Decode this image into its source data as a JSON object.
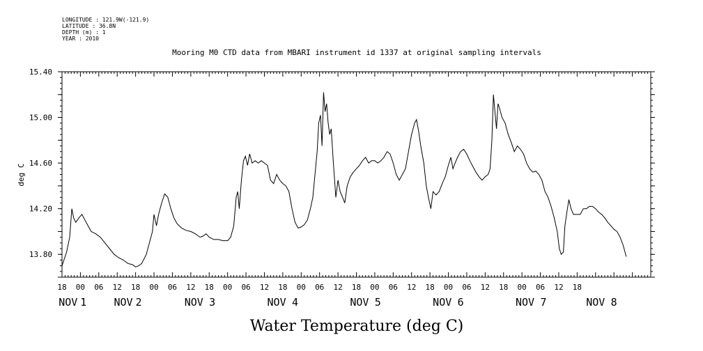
{
  "header": {
    "meta_lines": [
      "LONGITUDE : 121.9W(-121.9)",
      "LATITUDE : 36.8N",
      "DEPTH (m) : 1",
      "YEAR : 2010"
    ]
  },
  "chart_data": {
    "type": "line",
    "title": "Mooring M0 CTD data from MBARI instrument id 1337 at original sampling intervals",
    "xlabel": "Water Temperature (deg C)",
    "ylabel": "deg C",
    "ylim": [
      13.6,
      15.4
    ],
    "yticks": [
      13.8,
      14.2,
      14.6,
      15.0,
      15.4
    ],
    "ytick_labels": [
      "13.80",
      "14.20",
      "14.60",
      "15.00",
      "15.40"
    ],
    "xlim_hours": [
      -6,
      186
    ],
    "xtick_labels": [
      "18",
      "00",
      "06",
      "12",
      "18",
      "00",
      "06",
      "12",
      "18",
      "00",
      "06",
      "12",
      "18",
      "00",
      "06",
      "12",
      "18",
      "00",
      "06",
      "12",
      "18",
      "00",
      "06",
      "12",
      "18",
      "00",
      "06",
      "12",
      "18"
    ],
    "date_labels": [
      {
        "text": "NOV",
        "hour": -4
      },
      {
        "text": "1",
        "hour": 1
      },
      {
        "text": "NOV",
        "hour": 14
      },
      {
        "text": "2",
        "hour": 19
      },
      {
        "text": "NOV",
        "hour": 37
      },
      {
        "text": "3",
        "hour": 43
      },
      {
        "text": "NOV",
        "hour": 64
      },
      {
        "text": "4",
        "hour": 70
      },
      {
        "text": "NOV",
        "hour": 91
      },
      {
        "text": "5",
        "hour": 97
      },
      {
        "text": "NOV",
        "hour": 118
      },
      {
        "text": "6",
        "hour": 124
      },
      {
        "text": "NOV",
        "hour": 145
      },
      {
        "text": "7",
        "hour": 151
      },
      {
        "text": "NOV",
        "hour": 168
      },
      {
        "text": "8",
        "hour": 174
      }
    ],
    "series": [
      {
        "points": [
          [
            -6,
            13.7
          ],
          [
            -4.5,
            13.82
          ],
          [
            -3.5,
            13.95
          ],
          [
            -2.8,
            14.2
          ],
          [
            -2.2,
            14.12
          ],
          [
            -1.5,
            14.08
          ],
          [
            -0.5,
            14.12
          ],
          [
            0.5,
            14.15
          ],
          [
            1.5,
            14.1
          ],
          [
            2.5,
            14.05
          ],
          [
            3.5,
            14.0
          ],
          [
            5,
            13.98
          ],
          [
            6.5,
            13.95
          ],
          [
            8,
            13.9
          ],
          [
            9.5,
            13.85
          ],
          [
            11,
            13.8
          ],
          [
            12.5,
            13.77
          ],
          [
            14,
            13.75
          ],
          [
            15.5,
            13.72
          ],
          [
            17,
            13.71
          ],
          [
            18,
            13.69
          ],
          [
            19,
            13.7
          ],
          [
            20,
            13.72
          ],
          [
            21.5,
            13.8
          ],
          [
            22.5,
            13.9
          ],
          [
            23.5,
            14.0
          ],
          [
            24,
            14.15
          ],
          [
            24.8,
            14.05
          ],
          [
            25.5,
            14.15
          ],
          [
            26.5,
            14.25
          ],
          [
            27.5,
            14.33
          ],
          [
            28.5,
            14.3
          ],
          [
            29.5,
            14.2
          ],
          [
            30.5,
            14.12
          ],
          [
            31.5,
            14.07
          ],
          [
            33,
            14.03
          ],
          [
            34.5,
            14.01
          ],
          [
            36,
            14.0
          ],
          [
            37.5,
            13.98
          ],
          [
            39,
            13.95
          ],
          [
            40,
            13.96
          ],
          [
            41,
            13.98
          ],
          [
            42,
            13.95
          ],
          [
            43.5,
            13.93
          ],
          [
            45,
            13.93
          ],
          [
            46.5,
            13.92
          ],
          [
            48,
            13.92
          ],
          [
            49,
            13.95
          ],
          [
            50,
            14.05
          ],
          [
            50.8,
            14.3
          ],
          [
            51.3,
            14.35
          ],
          [
            51.8,
            14.2
          ],
          [
            52.5,
            14.45
          ],
          [
            53.2,
            14.62
          ],
          [
            53.8,
            14.66
          ],
          [
            54.5,
            14.58
          ],
          [
            55.2,
            14.68
          ],
          [
            56,
            14.6
          ],
          [
            57,
            14.62
          ],
          [
            58,
            14.6
          ],
          [
            59,
            14.62
          ],
          [
            60,
            14.6
          ],
          [
            61,
            14.58
          ],
          [
            62,
            14.45
          ],
          [
            63,
            14.42
          ],
          [
            64,
            14.5
          ],
          [
            65,
            14.45
          ],
          [
            66,
            14.42
          ],
          [
            67,
            14.4
          ],
          [
            68,
            14.35
          ],
          [
            69,
            14.2
          ],
          [
            70,
            14.08
          ],
          [
            71,
            14.03
          ],
          [
            72,
            14.04
          ],
          [
            73,
            14.06
          ],
          [
            74,
            14.1
          ],
          [
            75,
            14.2
          ],
          [
            75.8,
            14.3
          ],
          [
            76.5,
            14.5
          ],
          [
            77.2,
            14.7
          ],
          [
            77.7,
            14.95
          ],
          [
            78.3,
            15.02
          ],
          [
            78.8,
            14.75
          ],
          [
            79.3,
            15.22
          ],
          [
            79.8,
            15.05
          ],
          [
            80.3,
            15.12
          ],
          [
            80.8,
            14.95
          ],
          [
            81.3,
            14.85
          ],
          [
            81.8,
            14.9
          ],
          [
            82.5,
            14.6
          ],
          [
            83.3,
            14.3
          ],
          [
            84,
            14.45
          ],
          [
            84.7,
            14.35
          ],
          [
            85.5,
            14.3
          ],
          [
            86.2,
            14.25
          ],
          [
            87,
            14.4
          ],
          [
            88,
            14.48
          ],
          [
            89,
            14.52
          ],
          [
            90,
            14.55
          ],
          [
            91,
            14.58
          ],
          [
            92,
            14.62
          ],
          [
            93,
            14.65
          ],
          [
            94,
            14.6
          ],
          [
            95,
            14.62
          ],
          [
            96,
            14.62
          ],
          [
            97,
            14.6
          ],
          [
            98,
            14.62
          ],
          [
            99,
            14.65
          ],
          [
            100,
            14.7
          ],
          [
            101,
            14.68
          ],
          [
            102,
            14.6
          ],
          [
            103,
            14.5
          ],
          [
            104,
            14.45
          ],
          [
            105,
            14.5
          ],
          [
            106,
            14.55
          ],
          [
            107,
            14.7
          ],
          [
            108,
            14.85
          ],
          [
            109,
            14.95
          ],
          [
            109.6,
            14.98
          ],
          [
            110.3,
            14.88
          ],
          [
            111,
            14.75
          ],
          [
            112,
            14.6
          ],
          [
            112.8,
            14.4
          ],
          [
            113.5,
            14.3
          ],
          [
            114.3,
            14.2
          ],
          [
            115,
            14.35
          ],
          [
            116,
            14.32
          ],
          [
            117,
            14.35
          ],
          [
            118,
            14.42
          ],
          [
            119,
            14.48
          ],
          [
            120,
            14.58
          ],
          [
            120.8,
            14.65
          ],
          [
            121.5,
            14.55
          ],
          [
            122.2,
            14.6
          ],
          [
            123,
            14.65
          ],
          [
            124,
            14.7
          ],
          [
            125,
            14.72
          ],
          [
            126,
            14.68
          ],
          [
            127,
            14.62
          ],
          [
            128,
            14.57
          ],
          [
            129,
            14.52
          ],
          [
            130,
            14.48
          ],
          [
            131,
            14.45
          ],
          [
            132,
            14.48
          ],
          [
            133,
            14.5
          ],
          [
            133.6,
            14.55
          ],
          [
            134.2,
            14.8
          ],
          [
            134.7,
            15.2
          ],
          [
            135.2,
            15.05
          ],
          [
            135.7,
            14.9
          ],
          [
            136.2,
            15.12
          ],
          [
            136.7,
            15.08
          ],
          [
            137.5,
            15.0
          ],
          [
            138.5,
            14.95
          ],
          [
            139.5,
            14.85
          ],
          [
            140.5,
            14.78
          ],
          [
            141.5,
            14.7
          ],
          [
            142.5,
            14.75
          ],
          [
            143.5,
            14.72
          ],
          [
            144.5,
            14.68
          ],
          [
            145.5,
            14.6
          ],
          [
            146.5,
            14.55
          ],
          [
            147.5,
            14.52
          ],
          [
            148.5,
            14.53
          ],
          [
            149.5,
            14.5
          ],
          [
            150.5,
            14.45
          ],
          [
            151.5,
            14.35
          ],
          [
            152.5,
            14.3
          ],
          [
            153.5,
            14.22
          ],
          [
            154.5,
            14.12
          ],
          [
            155.5,
            14.0
          ],
          [
            156.2,
            13.85
          ],
          [
            156.8,
            13.8
          ],
          [
            157.5,
            13.82
          ],
          [
            158,
            14.05
          ],
          [
            158.7,
            14.18
          ],
          [
            159.3,
            14.28
          ],
          [
            160,
            14.2
          ],
          [
            160.8,
            14.15
          ],
          [
            161.8,
            14.15
          ],
          [
            163,
            14.15
          ],
          [
            164,
            14.2
          ],
          [
            165,
            14.2
          ],
          [
            166,
            14.22
          ],
          [
            167,
            14.22
          ],
          [
            168,
            14.2
          ],
          [
            169,
            14.17
          ],
          [
            170,
            14.15
          ],
          [
            171,
            14.12
          ],
          [
            172,
            14.08
          ],
          [
            173,
            14.05
          ],
          [
            174,
            14.02
          ],
          [
            175,
            14.0
          ],
          [
            176,
            13.95
          ],
          [
            177,
            13.88
          ],
          [
            178,
            13.78
          ]
        ]
      }
    ],
    "grid": false
  }
}
